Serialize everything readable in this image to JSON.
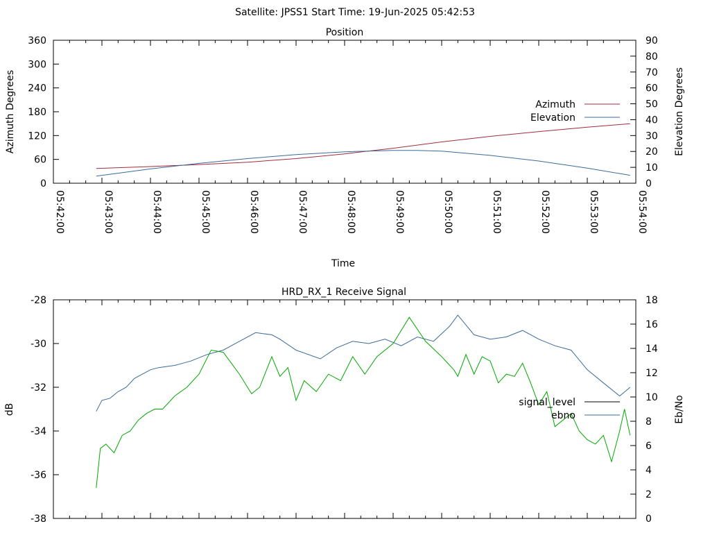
{
  "header": {
    "title": "Satellite: JPSS1    Start Time: 19-Jun-2025 05:42:53"
  },
  "chart_data": [
    {
      "type": "line",
      "title": "Position",
      "xlabel": "Time",
      "ylabel": "Azimuth Degrees",
      "y2label": "Elevation Degrees",
      "x_ticks": [
        "05:42:00",
        "05:43:00",
        "05:44:00",
        "05:45:00",
        "05:46:00",
        "05:47:00",
        "05:48:00",
        "05:49:00",
        "05:50:00",
        "05:51:00",
        "05:52:00",
        "05:53:00",
        "05:54:00"
      ],
      "xlim": [
        0,
        720
      ],
      "ylim": [
        0,
        360
      ],
      "y_ticks": [
        "0",
        "60",
        "120",
        "180",
        "240",
        "300",
        "360"
      ],
      "y2lim": [
        0,
        90
      ],
      "y2_ticks": [
        "0",
        "10",
        "20",
        "30",
        "40",
        "50",
        "60",
        "70",
        "80",
        "90"
      ],
      "legend_position": "right",
      "series": [
        {
          "name": "Azimuth",
          "axis": "y",
          "color": "#a32b3c",
          "x": [
            53,
            120,
            180,
            240,
            300,
            360,
            420,
            480,
            540,
            600,
            660,
            713
          ],
          "values": [
            37,
            42,
            47,
            53,
            62,
            74,
            88,
            104,
            118,
            130,
            141,
            150
          ]
        },
        {
          "name": "Elevation",
          "axis": "y2",
          "color": "#3a6a9a",
          "x": [
            53,
            120,
            180,
            240,
            300,
            360,
            420,
            450,
            480,
            540,
            600,
            660,
            713
          ],
          "values": [
            4.5,
            9,
            12.5,
            15.5,
            18,
            19.8,
            20.6,
            20.6,
            20.2,
            17.5,
            14,
            9.5,
            5
          ]
        }
      ]
    },
    {
      "type": "line",
      "title": "HRD_RX_1 Receive Signal",
      "ylabel": "dB",
      "y2label": "Eb/No",
      "xlim": [
        0,
        720
      ],
      "ylim": [
        -38,
        -28
      ],
      "y_ticks": [
        "-28",
        "-30",
        "-32",
        "-34",
        "-36",
        "-38"
      ],
      "y2lim": [
        0,
        18
      ],
      "y2_ticks": [
        "0",
        "2",
        "4",
        "6",
        "8",
        "10",
        "12",
        "14",
        "16",
        "18"
      ],
      "legend_position": "right",
      "legend": [
        {
          "name": "signal_level",
          "color": "#000000"
        },
        {
          "name": "ebno",
          "color": "#3a6a9a"
        }
      ],
      "series": [
        {
          "name": "ebno",
          "axis": "y",
          "color": "#3a6a9a",
          "x": [
            53,
            60,
            70,
            80,
            90,
            100,
            110,
            120,
            130,
            150,
            170,
            190,
            210,
            230,
            250,
            270,
            280,
            300,
            330,
            350,
            370,
            390,
            410,
            430,
            450,
            470,
            490,
            500,
            520,
            540,
            560,
            580,
            600,
            620,
            640,
            660,
            680,
            700,
            713
          ],
          "values": [
            -33.1,
            -32.6,
            -32.5,
            -32.2,
            -32.0,
            -31.6,
            -31.4,
            -31.2,
            -31.1,
            -31.0,
            -30.8,
            -30.5,
            -30.3,
            -29.9,
            -29.5,
            -29.6,
            -29.8,
            -30.3,
            -30.7,
            -30.2,
            -29.9,
            -30.0,
            -29.8,
            -30.1,
            -29.7,
            -29.9,
            -29.2,
            -28.7,
            -29.6,
            -29.8,
            -29.7,
            -29.4,
            -29.8,
            -30.1,
            -30.3,
            -31.2,
            -31.8,
            -32.4,
            -32.0
          ]
        },
        {
          "name": "",
          "axis": "y",
          "color": "#00a800",
          "x": [
            53,
            58,
            65,
            75,
            85,
            95,
            105,
            115,
            125,
            135,
            150,
            165,
            180,
            195,
            210,
            220,
            230,
            245,
            255,
            270,
            280,
            290,
            300,
            310,
            325,
            340,
            355,
            370,
            385,
            400,
            420,
            440,
            460,
            480,
            495,
            500,
            510,
            520,
            530,
            540,
            550,
            560,
            570,
            580,
            590,
            600,
            610,
            620,
            630,
            640,
            650,
            660,
            670,
            680,
            690,
            700,
            706,
            713
          ],
          "values": [
            -36.6,
            -34.8,
            -34.6,
            -35.0,
            -34.2,
            -34.0,
            -33.5,
            -33.2,
            -33.0,
            -33.0,
            -32.4,
            -32.0,
            -31.4,
            -30.3,
            -30.4,
            -30.9,
            -31.4,
            -32.3,
            -32.0,
            -30.6,
            -31.5,
            -31.1,
            -32.6,
            -31.7,
            -32.2,
            -31.4,
            -31.7,
            -30.6,
            -31.4,
            -30.6,
            -30.0,
            -28.8,
            -29.9,
            -30.6,
            -31.2,
            -31.5,
            -30.5,
            -31.4,
            -30.6,
            -30.8,
            -31.8,
            -31.4,
            -31.5,
            -30.9,
            -31.8,
            -32.8,
            -32.2,
            -33.8,
            -33.5,
            -33.2,
            -34.0,
            -34.4,
            -34.6,
            -34.2,
            -35.4,
            -34.0,
            -33.0,
            -34.2
          ]
        }
      ]
    }
  ]
}
